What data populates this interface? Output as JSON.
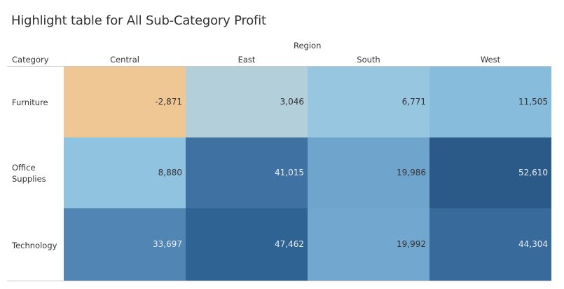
{
  "title": "Highlight table for All Sub-Category Profit",
  "chart_data": {
    "type": "heatmap",
    "title": "Highlight table for All Sub-Category Profit",
    "row_header": "Category",
    "column_header": "Region",
    "columns": [
      "Central",
      "East",
      "South",
      "West"
    ],
    "rows": [
      "Furniture",
      "Office\nSupplies",
      "Technology"
    ],
    "row_labels_display": [
      [
        "Furniture"
      ],
      [
        "Office",
        "Supplies"
      ],
      [
        "Technology"
      ]
    ],
    "values": [
      [
        -2871,
        3046,
        6771,
        11505
      ],
      [
        8880,
        41015,
        19986,
        52610
      ],
      [
        33697,
        47462,
        19992,
        44304
      ]
    ],
    "labels": [
      [
        "-2,871",
        "3,046",
        "6,771",
        "11,505"
      ],
      [
        "8,880",
        "41,015",
        "19,986",
        "52,610"
      ],
      [
        "33,697",
        "47,462",
        "19,992",
        "44,304"
      ]
    ],
    "colors": [
      [
        "#EFC795",
        "#B3CFDA",
        "#96C6E0",
        "#88BCDC"
      ],
      [
        "#90C3E0",
        "#3F71A2",
        "#6FA5CC",
        "#2B5A89"
      ],
      [
        "#5186B4",
        "#2F6393",
        "#72A7CF",
        "#386B9C"
      ]
    ],
    "text_colors": [
      [
        "#333333",
        "#333333",
        "#333333",
        "#333333"
      ],
      [
        "#333333",
        "#E8EEF5",
        "#333333",
        "#E8EEF5"
      ],
      [
        "#E8EEF5",
        "#E8EEF5",
        "#333333",
        "#E8EEF5"
      ]
    ]
  }
}
